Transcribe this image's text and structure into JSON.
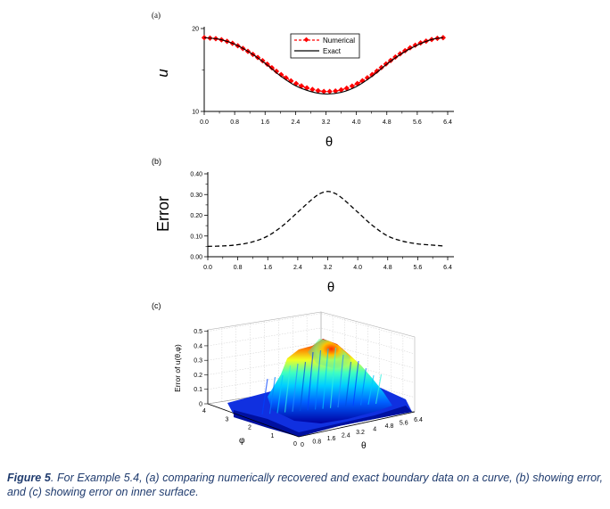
{
  "chart_data": [
    {
      "type": "line",
      "panel_label": "(a)",
      "xlabel": "θ",
      "ylabel": "u",
      "xlim": [
        0,
        6.4
      ],
      "ylim": [
        10,
        20
      ],
      "xticks": [
        "0.0",
        "0.8",
        "1.6",
        "2.4",
        "3.2",
        "4.0",
        "4.8",
        "5.6",
        "6.4"
      ],
      "yticks": [
        "10",
        "20"
      ],
      "legend_position": "top-center",
      "series": [
        {
          "name": "Numerical",
          "color": "#ff0000",
          "style": "dashed-diamond",
          "x": [
            0.0,
            0.4,
            0.8,
            1.2,
            1.6,
            2.0,
            2.4,
            2.8,
            3.2,
            3.6,
            4.0,
            4.4,
            4.8,
            5.2,
            5.6,
            6.0,
            6.28
          ],
          "y": [
            18.9,
            18.7,
            18.1,
            17.1,
            15.9,
            14.5,
            13.4,
            12.7,
            12.4,
            12.6,
            13.3,
            14.4,
            15.8,
            17.1,
            18.1,
            18.7,
            18.9
          ]
        },
        {
          "name": "Exact",
          "color": "#000000",
          "style": "solid",
          "x": [
            0.0,
            0.4,
            0.8,
            1.2,
            1.6,
            2.0,
            2.4,
            2.8,
            3.2,
            3.6,
            4.0,
            4.4,
            4.8,
            5.2,
            5.6,
            6.0,
            6.28
          ],
          "y": [
            18.9,
            18.7,
            18.1,
            17.1,
            15.8,
            14.3,
            13.1,
            12.4,
            12.1,
            12.3,
            13.0,
            14.2,
            15.7,
            17.0,
            18.0,
            18.7,
            18.9
          ]
        }
      ]
    },
    {
      "type": "line",
      "panel_label": "(b)",
      "xlabel": "θ",
      "ylabel": "Error",
      "xlim": [
        0,
        6.4
      ],
      "ylim": [
        0,
        0.4
      ],
      "xticks": [
        "0.0",
        "0.8",
        "1.6",
        "2.4",
        "3.2",
        "4.0",
        "4.8",
        "5.6",
        "6.4"
      ],
      "yticks": [
        "0.00",
        "0.10",
        "0.20",
        "0.30",
        "0.40"
      ],
      "series": [
        {
          "color": "#000000",
          "style": "dashed",
          "x": [
            0.0,
            0.4,
            0.8,
            1.2,
            1.6,
            2.0,
            2.4,
            2.8,
            3.0,
            3.2,
            3.4,
            3.6,
            4.0,
            4.4,
            4.8,
            5.2,
            5.6,
            6.0,
            6.28
          ],
          "y": [
            0.05,
            0.052,
            0.058,
            0.072,
            0.1,
            0.15,
            0.215,
            0.28,
            0.305,
            0.315,
            0.305,
            0.28,
            0.215,
            0.15,
            0.1,
            0.075,
            0.062,
            0.056,
            0.052
          ]
        }
      ]
    },
    {
      "type": "surface3d",
      "panel_label": "(c)",
      "xlabel": "θ",
      "ylabel": "φ",
      "zlabel": "Error of u(θ,φ)",
      "xticks": [
        "0",
        "0.8",
        "1.6",
        "2.4",
        "3.2",
        "4",
        "4.8",
        "5.6",
        "6.4"
      ],
      "yticks": [
        "0",
        "1",
        "2",
        "3",
        "4"
      ],
      "zticks": [
        "0",
        "0.1",
        "0.2",
        "0.3",
        "0.4",
        "0.5"
      ],
      "colormap": "jet"
    }
  ],
  "caption": {
    "label": "Figure 5",
    "text": ". For Example 5.4, (a) comparing numerically recovered and exact boundary data on a curve, (b) showing error, and (c) showing error on inner surface."
  }
}
